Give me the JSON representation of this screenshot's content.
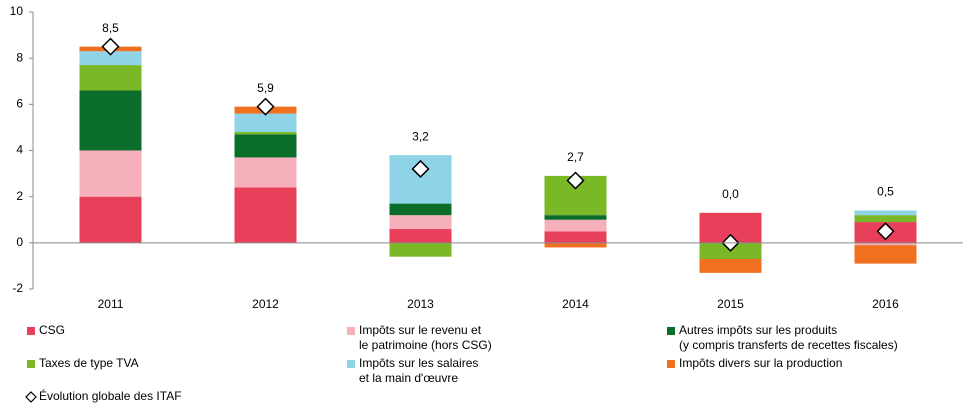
{
  "chart_data": {
    "type": "stacked_bar",
    "categories": [
      "2011",
      "2012",
      "2013",
      "2014",
      "2015",
      "2016"
    ],
    "series": [
      {
        "name": "CSG",
        "color": "#e8405a",
        "values": [
          2.0,
          2.4,
          0.6,
          0.5,
          1.3,
          0.9
        ]
      },
      {
        "name": "Impôts sur le revenu et\nle patrimoine (hors CSG)",
        "color": "#f5b0bc",
        "values": [
          2.0,
          1.3,
          0.6,
          0.5,
          0.0,
          -0.1
        ]
      },
      {
        "name": "Autres impôts sur les produits\n(y compris transferts de recettes fiscales)",
        "color": "#0a6e2a",
        "values": [
          2.6,
          1.0,
          0.5,
          0.2,
          0.0,
          0.0
        ]
      },
      {
        "name": "Taxes de type TVA",
        "color": "#7ab828",
        "values": [
          1.1,
          0.1,
          -0.6,
          1.7,
          -0.7,
          0.3
        ]
      },
      {
        "name": "Impôts sur les salaires\net la main d'œuvre",
        "color": "#8fd3e6",
        "values": [
          0.6,
          0.8,
          2.1,
          0.0,
          0.0,
          0.2
        ]
      },
      {
        "name": "Impôts divers sur la production",
        "color": "#f07020",
        "values": [
          0.2,
          0.3,
          0.0,
          -0.2,
          -0.6,
          -0.8
        ]
      }
    ],
    "total": {
      "name": "Évolution globale des ITAF",
      "values": [
        8.5,
        5.9,
        3.2,
        2.7,
        0.0,
        0.5
      ],
      "value_labels": [
        "8,5",
        "5,9",
        "3,2",
        "2,7",
        "0,0",
        "0,5"
      ]
    },
    "ylim": [
      -2,
      10
    ],
    "yticks": [
      -2,
      0,
      2,
      4,
      6,
      8,
      10
    ]
  }
}
